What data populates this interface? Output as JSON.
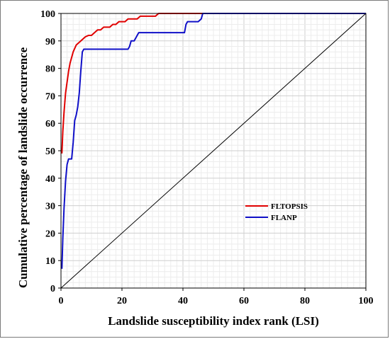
{
  "chart_data": {
    "type": "line",
    "xlabel": "Landslide susceptibility index rank (LSI)",
    "ylabel": "Cumulative percentage of landslide occurrence",
    "xlim": [
      0,
      100
    ],
    "ylim": [
      0,
      100
    ],
    "xticks": [
      0,
      20,
      40,
      60,
      80,
      100
    ],
    "yticks": [
      0,
      10,
      20,
      30,
      40,
      50,
      60,
      70,
      80,
      90,
      100
    ],
    "grid": true,
    "legend_position": "center-right",
    "reference_line": {
      "x": [
        0,
        100
      ],
      "y": [
        0,
        100
      ],
      "color": "#000000"
    },
    "series": [
      {
        "name": "FLTOPSIS",
        "color": "#e00000",
        "x": [
          0.3,
          0.6,
          1,
          1.5,
          2,
          2.5,
          3,
          3.5,
          4,
          5,
          6,
          7,
          8,
          9,
          10,
          11,
          12,
          13,
          14,
          15,
          16,
          17,
          18,
          19,
          20,
          21,
          22,
          23,
          24,
          25,
          26,
          28,
          30,
          31,
          32,
          33,
          40,
          50,
          60,
          70,
          80,
          90,
          100
        ],
        "y": [
          49,
          57,
          64,
          71,
          75,
          79,
          82,
          84,
          86,
          88.5,
          89.5,
          90.5,
          91.5,
          92,
          92,
          93,
          94,
          94,
          95,
          95,
          95,
          96,
          96,
          97,
          97,
          97,
          98,
          98,
          98,
          98,
          99,
          99,
          99,
          99,
          100,
          100,
          100,
          100,
          100,
          100,
          100,
          100,
          100
        ]
      },
      {
        "name": "FLANP",
        "color": "#1010c8",
        "x": [
          0.3,
          0.6,
          1,
          1.5,
          2,
          2.5,
          3,
          3.5,
          4,
          4.5,
          5,
          5.5,
          6,
          6.5,
          7,
          7.5,
          8,
          10,
          15,
          21.5,
          22,
          22.5,
          23,
          24,
          25,
          25.5,
          26,
          30,
          35,
          40.5,
          41,
          41.5,
          42,
          44,
          45,
          46,
          46.5,
          50,
          60,
          70,
          80,
          90,
          100
        ],
        "y": [
          7,
          18,
          29,
          39,
          45,
          47,
          47,
          47,
          53,
          61,
          63,
          66,
          71,
          79,
          86,
          87,
          87,
          87,
          87,
          87,
          87,
          88,
          90,
          90,
          92,
          93,
          93,
          93,
          93,
          93,
          96,
          97,
          97,
          97,
          97,
          98,
          100,
          100,
          100,
          100,
          100,
          100,
          100
        ]
      }
    ]
  }
}
